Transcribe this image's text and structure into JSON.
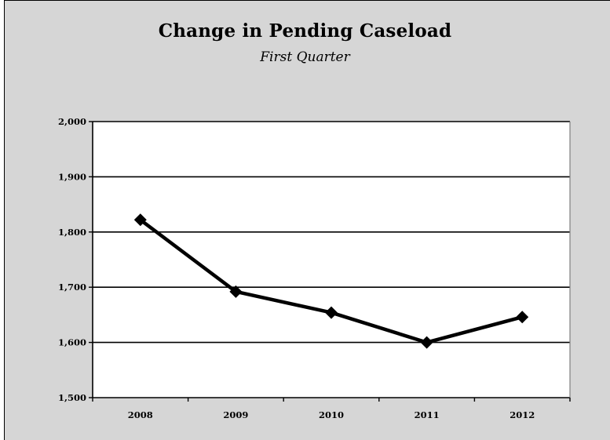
{
  "chart_data": {
    "type": "line",
    "title": "Change in Pending Caseload",
    "subtitle": "First Quarter",
    "categories": [
      "2008",
      "2009",
      "2010",
      "2011",
      "2012"
    ],
    "values": [
      1822,
      1692,
      1654,
      1600,
      1646
    ],
    "ylim": [
      1500,
      2000
    ],
    "y_ticks": [
      1500,
      1600,
      1700,
      1800,
      1900,
      2000
    ],
    "y_tick_labels": [
      "1,500",
      "1,600",
      "1,700",
      "1,800",
      "1,900",
      "2,000"
    ],
    "grid": true,
    "legend": "none",
    "marker": "diamond",
    "colors": {
      "background": "#d6d6d6",
      "plot_area": "#ffffff",
      "line": "#000000"
    }
  }
}
